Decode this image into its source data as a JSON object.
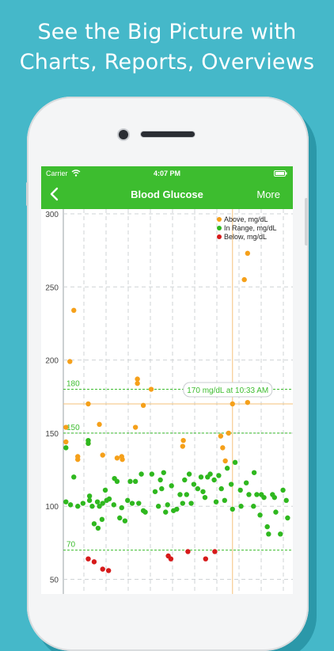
{
  "headline": {
    "line1": "See the Big Picture with",
    "line2": "Charts, Reports, Overviews"
  },
  "status_bar": {
    "carrier": "Carrier",
    "time": "4:07 PM",
    "wifi_icon": "wifi-icon",
    "battery_icon": "battery-charging-icon"
  },
  "navbar": {
    "back_icon": "chevron-left-icon",
    "title": "Blood Glucose",
    "more_label": "More",
    "color": "#3dbd2f"
  },
  "legend": [
    {
      "label": "Above, mg/dL",
      "color": "#f5a01a"
    },
    {
      "label": "In Range, mg/dL",
      "color": "#2fb81f"
    },
    {
      "label": "Below, mg/dL",
      "color": "#d61a1a"
    }
  ],
  "tooltip": "170 mg/dL at 10:33 AM",
  "reference_lines": [
    {
      "label": "180",
      "value": 180
    },
    {
      "label": "150",
      "value": 150
    },
    {
      "label": "70",
      "value": 70
    }
  ],
  "chart_data": {
    "type": "scatter",
    "y_ticks": [
      "300",
      "250",
      "200",
      "150",
      "100",
      "50"
    ],
    "ylim": [
      40,
      300
    ],
    "grid": true,
    "legend_position": "top-right",
    "series": [
      {
        "name": "Above, mg/dL",
        "color": "#f5a01a",
        "points": [
          [
            4,
            144
          ],
          [
            4,
            154
          ],
          [
            10,
            199
          ],
          [
            16,
            234
          ],
          [
            22,
            132
          ],
          [
            22,
            134
          ],
          [
            38,
            170
          ],
          [
            38,
            143
          ],
          [
            55,
            156
          ],
          [
            60,
            135
          ],
          [
            82,
            133
          ],
          [
            89,
            134
          ],
          [
            90,
            132
          ],
          [
            110,
            154
          ],
          [
            113,
            187
          ],
          [
            113,
            184
          ],
          [
            122,
            169
          ],
          [
            134,
            180
          ],
          [
            182,
            141
          ],
          [
            183,
            145
          ],
          [
            240,
            148
          ],
          [
            243,
            140
          ],
          [
            247,
            131
          ],
          [
            252,
            150
          ],
          [
            258,
            170
          ],
          [
            276,
            255
          ],
          [
            281,
            273
          ],
          [
            281,
            171
          ]
        ]
      },
      {
        "name": "In Range, mg/dL",
        "color": "#2fb81f",
        "points": [
          [
            4,
            140
          ],
          [
            4,
            103
          ],
          [
            11,
            101
          ],
          [
            16,
            120
          ],
          [
            22,
            100
          ],
          [
            30,
            102
          ],
          [
            38,
            145
          ],
          [
            38,
            143
          ],
          [
            40,
            104
          ],
          [
            40,
            107
          ],
          [
            44,
            100
          ],
          [
            47,
            88
          ],
          [
            52,
            103
          ],
          [
            53,
            85
          ],
          [
            55,
            100
          ],
          [
            59,
            91
          ],
          [
            60,
            102
          ],
          [
            64,
            111
          ],
          [
            66,
            104
          ],
          [
            70,
            105
          ],
          [
            77,
            101
          ],
          [
            78,
            119
          ],
          [
            82,
            117
          ],
          [
            86,
            92
          ],
          [
            89,
            99
          ],
          [
            94,
            90
          ],
          [
            98,
            104
          ],
          [
            102,
            117
          ],
          [
            105,
            102
          ],
          [
            110,
            117
          ],
          [
            115,
            102
          ],
          [
            119,
            122
          ],
          [
            122,
            97
          ],
          [
            125,
            96
          ],
          [
            135,
            122
          ],
          [
            140,
            110
          ],
          [
            145,
            100
          ],
          [
            148,
            118
          ],
          [
            150,
            112
          ],
          [
            153,
            123
          ],
          [
            156,
            96
          ],
          [
            159,
            101
          ],
          [
            165,
            114
          ],
          [
            168,
            97
          ],
          [
            173,
            98
          ],
          [
            178,
            108
          ],
          [
            182,
            102
          ],
          [
            185,
            118
          ],
          [
            188,
            108
          ],
          [
            192,
            122
          ],
          [
            195,
            102
          ],
          [
            199,
            115
          ],
          [
            205,
            112
          ],
          [
            210,
            120
          ],
          [
            213,
            110
          ],
          [
            216,
            106
          ],
          [
            220,
            120
          ],
          [
            224,
            122
          ],
          [
            230,
            118
          ],
          [
            233,
            103
          ],
          [
            237,
            121
          ],
          [
            241,
            112
          ],
          [
            246,
            104
          ],
          [
            250,
            126
          ],
          [
            256,
            115
          ],
          [
            258,
            98
          ],
          [
            262,
            130
          ],
          [
            270,
            111
          ],
          [
            271,
            100
          ],
          [
            279,
            116
          ],
          [
            283,
            108
          ],
          [
            290,
            100
          ],
          [
            291,
            123
          ],
          [
            295,
            108
          ],
          [
            300,
            94
          ],
          [
            302,
            108
          ],
          [
            306,
            106
          ],
          [
            311,
            86
          ],
          [
            313,
            81
          ],
          [
            319,
            108
          ],
          [
            322,
            106
          ],
          [
            324,
            96
          ],
          [
            331,
            81
          ],
          [
            335,
            111
          ],
          [
            340,
            104
          ],
          [
            342,
            92
          ]
        ]
      },
      {
        "name": "Below, mg/dL",
        "color": "#d61a1a",
        "points": [
          [
            38,
            64
          ],
          [
            47,
            62
          ],
          [
            60,
            57
          ],
          [
            69,
            56
          ],
          [
            160,
            66
          ],
          [
            164,
            64
          ],
          [
            190,
            69
          ],
          [
            217,
            64
          ],
          [
            231,
            69
          ]
        ]
      }
    ]
  }
}
